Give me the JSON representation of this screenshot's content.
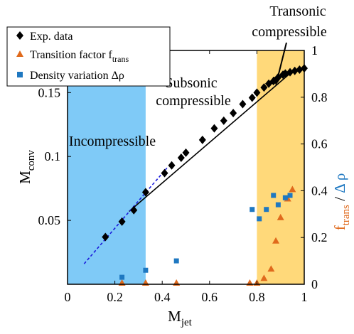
{
  "chart_data": {
    "type": "scatter",
    "xlabel": "M",
    "xlabel_sub": "jet",
    "ylabel_left": "M",
    "ylabel_left_sub": "conv",
    "ylabel_right_parts": [
      "f",
      "trans",
      " / ",
      "Δ ρ"
    ],
    "xlim": [
      0,
      1
    ],
    "ylim_left": [
      0,
      0.183
    ],
    "ylim_right": [
      0,
      1
    ],
    "x_ticks": [
      0,
      0.2,
      0.4,
      0.6,
      0.8,
      1
    ],
    "x_tick_labels": [
      "0",
      "0.2",
      "0.4",
      "0.6",
      "0.8",
      "1"
    ],
    "y_left_ticks": [
      0.05,
      0.1,
      0.15
    ],
    "y_left_tick_labels": [
      "0.05",
      "0.1",
      "0.15"
    ],
    "y_right_ticks": [
      0,
      0.2,
      0.4,
      0.6,
      0.8,
      1
    ],
    "y_right_tick_labels": [
      "0",
      "0.2",
      "0.4",
      "0.6",
      "0.8",
      "1"
    ],
    "colors": {
      "incompressible_region": "#7fcaf7",
      "transonic_region": "#ffd97a",
      "exp_data": "#000000",
      "transition": "#e06a1c",
      "density": "#1f78c1",
      "fit_dashed": "#1a1adb",
      "axis": "#000000"
    },
    "regions": [
      {
        "label": "Incompressible",
        "x_range": [
          0,
          0.33
        ],
        "color_key": "incompressible_region"
      },
      {
        "label": "Subsonic compressible",
        "x_range": [
          0.33,
          0.8
        ],
        "color_key": "none"
      },
      {
        "label": "Transonic compressible",
        "x_range": [
          0.8,
          1.0
        ],
        "color_key": "transonic_region"
      }
    ],
    "region_labels": {
      "incompressible": "Incompressible",
      "subsonic_line1": "Subsonic",
      "subsonic_line2": "compressible",
      "transonic_line1": "Transonic",
      "transonic_line2": "compressible"
    },
    "legend": {
      "placement": "top-left",
      "entries": [
        {
          "label": "Exp. data",
          "marker": "diamond",
          "color_key": "exp_data"
        },
        {
          "label": "Transition factor f",
          "label_sub": "trans",
          "marker": "triangle",
          "color_key": "transition"
        },
        {
          "label": "Density variation Δρ",
          "marker": "square",
          "color_key": "density"
        }
      ]
    },
    "series": [
      {
        "name": "Exp. data",
        "axis": "left",
        "marker": "diamond",
        "x": [
          0.16,
          0.23,
          0.28,
          0.33,
          0.41,
          0.44,
          0.48,
          0.5,
          0.57,
          0.62,
          0.66,
          0.7,
          0.74,
          0.78,
          0.8,
          0.83,
          0.85,
          0.87,
          0.89,
          0.91,
          0.92,
          0.94,
          0.96,
          0.98,
          1.0
        ],
        "y": [
          0.037,
          0.049,
          0.058,
          0.072,
          0.087,
          0.093,
          0.099,
          0.103,
          0.113,
          0.122,
          0.128,
          0.134,
          0.141,
          0.146,
          0.15,
          0.154,
          0.157,
          0.159,
          0.162,
          0.164,
          0.165,
          0.166,
          0.167,
          0.168,
          0.169
        ]
      },
      {
        "name": "Transition factor f_trans",
        "axis": "right",
        "marker": "triangle",
        "x": [
          0.23,
          0.33,
          0.46,
          0.77,
          0.8,
          0.83,
          0.86,
          0.88,
          0.9,
          0.93,
          0.95
        ],
        "y": [
          0.0,
          0.0,
          0.0,
          0.0,
          0.0,
          0.02,
          0.06,
          0.18,
          0.28,
          0.36,
          0.4
        ]
      },
      {
        "name": "Density variation Δρ",
        "axis": "right",
        "marker": "square",
        "x": [
          0.23,
          0.33,
          0.46,
          0.78,
          0.81,
          0.84,
          0.87,
          0.89,
          0.92,
          0.94
        ],
        "y": [
          0.03,
          0.06,
          0.1,
          0.32,
          0.28,
          0.32,
          0.38,
          0.34,
          0.37,
          0.38
        ]
      }
    ],
    "fit_lines": [
      {
        "style": "solid",
        "color_key": "exp_data",
        "x": [
          0.26,
          0.94
        ],
        "y": [
          0.057,
          0.165
        ]
      },
      {
        "style": "dashed",
        "color_key": "fit_dashed",
        "x": [
          0.07,
          0.42
        ],
        "y": [
          0.016,
          0.091
        ]
      }
    ]
  }
}
